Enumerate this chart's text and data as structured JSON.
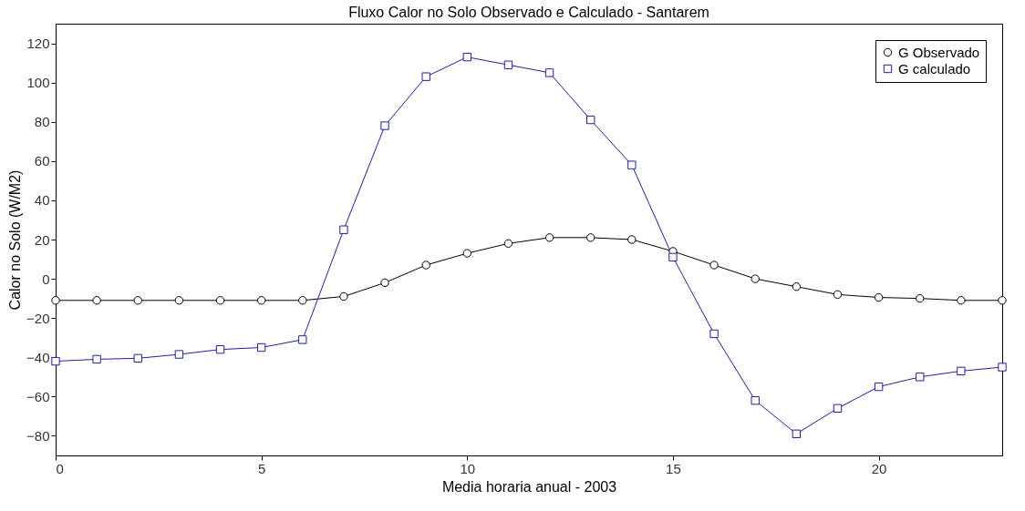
{
  "chart_data": {
    "type": "line",
    "title": "Fluxo Calor no Solo Observado e Calculado - Santarem",
    "xlabel": "Media horaria anual - 2003",
    "ylabel": "Calor no Solo (W/M2)",
    "x": [
      0,
      1,
      2,
      3,
      4,
      5,
      6,
      7,
      8,
      9,
      10,
      11,
      12,
      13,
      14,
      15,
      16,
      17,
      18,
      19,
      20,
      21,
      22,
      23
    ],
    "series": [
      {
        "name": "G Observado",
        "color": "#000000",
        "marker": "circle",
        "values": [
          -11,
          -11,
          -11,
          -11,
          -11,
          -11,
          -11,
          -9,
          -2,
          7,
          13,
          18,
          21,
          21,
          20,
          14,
          7,
          0,
          -4,
          -8,
          -9.5,
          -10,
          -11,
          -11
        ]
      },
      {
        "name": "G calculado",
        "color": "#1f1fa0",
        "marker": "square",
        "values": [
          -42,
          -41,
          -40.5,
          -38.5,
          -36,
          -35,
          -31,
          25,
          78,
          103,
          113,
          109,
          105,
          81,
          58,
          11,
          -28,
          -62,
          -79,
          -66,
          -55,
          -50,
          -47,
          -45
        ]
      }
    ],
    "xlim": [
      0,
      23
    ],
    "xticks": [
      0,
      5,
      10,
      15,
      20
    ],
    "ylim": [
      -90,
      130
    ],
    "yticks": [
      -80,
      -60,
      -40,
      -20,
      0,
      20,
      40,
      60,
      80,
      100,
      120
    ],
    "grid": false,
    "legend": "top right",
    "line_style": "solid"
  }
}
